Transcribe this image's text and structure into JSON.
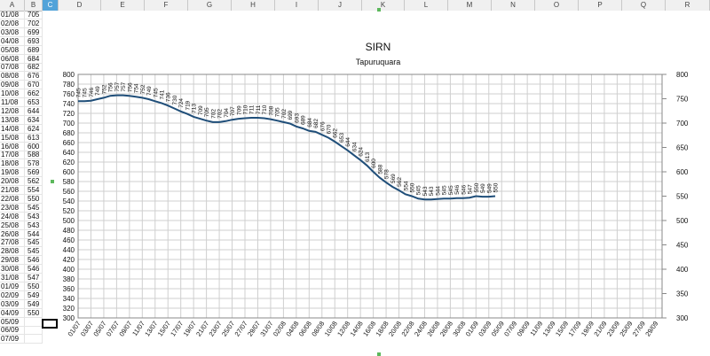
{
  "sheet": {
    "columns": [
      "A",
      "B",
      "C",
      "D",
      "E",
      "F",
      "G",
      "H",
      "I",
      "J",
      "K",
      "L",
      "M",
      "N",
      "O",
      "P",
      "Q",
      "R"
    ],
    "selected_column": "C",
    "rows": [
      {
        "a": "01/08",
        "b": "705"
      },
      {
        "a": "02/08",
        "b": "702"
      },
      {
        "a": "03/08",
        "b": "699"
      },
      {
        "a": "04/08",
        "b": "693"
      },
      {
        "a": "05/08",
        "b": "689"
      },
      {
        "a": "06/08",
        "b": "684"
      },
      {
        "a": "07/08",
        "b": "682"
      },
      {
        "a": "08/08",
        "b": "676"
      },
      {
        "a": "09/08",
        "b": "670"
      },
      {
        "a": "10/08",
        "b": "662"
      },
      {
        "a": "11/08",
        "b": "653"
      },
      {
        "a": "12/08",
        "b": "644"
      },
      {
        "a": "13/08",
        "b": "634"
      },
      {
        "a": "14/08",
        "b": "624"
      },
      {
        "a": "15/08",
        "b": "613"
      },
      {
        "a": "16/08",
        "b": "600"
      },
      {
        "a": "17/08",
        "b": "588"
      },
      {
        "a": "18/08",
        "b": "578"
      },
      {
        "a": "19/08",
        "b": "569"
      },
      {
        "a": "20/08",
        "b": "562"
      },
      {
        "a": "21/08",
        "b": "554"
      },
      {
        "a": "22/08",
        "b": "550"
      },
      {
        "a": "23/08",
        "b": "545"
      },
      {
        "a": "24/08",
        "b": "543"
      },
      {
        "a": "25/08",
        "b": "543"
      },
      {
        "a": "26/08",
        "b": "544"
      },
      {
        "a": "27/08",
        "b": "545"
      },
      {
        "a": "28/08",
        "b": "545"
      },
      {
        "a": "29/08",
        "b": "546"
      },
      {
        "a": "30/08",
        "b": "546"
      },
      {
        "a": "31/08",
        "b": "547"
      },
      {
        "a": "01/09",
        "b": "550"
      },
      {
        "a": "02/09",
        "b": "549"
      },
      {
        "a": "03/09",
        "b": "549"
      },
      {
        "a": "04/09",
        "b": "550"
      },
      {
        "a": "05/09",
        "b": ""
      },
      {
        "a": "06/09",
        "b": ""
      },
      {
        "a": "07/09",
        "b": ""
      }
    ]
  },
  "colors": {
    "line": "#1f4e79",
    "grid": "#cfcfcf",
    "axis": "#888888"
  },
  "chart_data": {
    "type": "line",
    "title": "SIRN",
    "subtitle": "Tapuruquara",
    "xlabel": "",
    "ylabel": "",
    "ylim": [
      300,
      800
    ],
    "yticks": [
      300,
      320,
      340,
      360,
      380,
      400,
      420,
      440,
      460,
      480,
      500,
      520,
      540,
      560,
      580,
      600,
      620,
      640,
      660,
      680,
      700,
      720,
      740,
      760,
      780,
      800
    ],
    "y2ticks": [
      300,
      350,
      400,
      450,
      500,
      550,
      600,
      650,
      700,
      750,
      800
    ],
    "grid": true,
    "legend": "none",
    "x_labels": [
      "01/07",
      "03/07",
      "05/07",
      "07/07",
      "09/07",
      "11/07",
      "13/07",
      "15/07",
      "17/07",
      "19/07",
      "21/07",
      "23/07",
      "25/07",
      "27/07",
      "29/07",
      "31/07",
      "02/08",
      "04/08",
      "06/08",
      "08/08",
      "10/08",
      "12/08",
      "14/08",
      "16/08",
      "18/08",
      "20/08",
      "22/08",
      "24/08",
      "26/08",
      "28/08",
      "30/08",
      "01/09",
      "03/09",
      "05/09",
      "07/09",
      "09/09",
      "11/09",
      "13/09",
      "15/09",
      "17/09",
      "19/09",
      "21/09",
      "23/09",
      "25/09",
      "27/09",
      "29/09"
    ],
    "series": [
      {
        "values": [
          745,
          745,
          746,
          749,
          752,
          756,
          757,
          757,
          756,
          754,
          752,
          749,
          745,
          741,
          736,
          730,
          724,
          719,
          713,
          709,
          705,
          702,
          702,
          704,
          707,
          709,
          710,
          711,
          711,
          710,
          708,
          705,
          702,
          699,
          693,
          689,
          684,
          682,
          676,
          670,
          662,
          653,
          644,
          634,
          624,
          613,
          600,
          588,
          578,
          569,
          562,
          554,
          550,
          545,
          543,
          543,
          544,
          545,
          545,
          546,
          546,
          547,
          550,
          549,
          549,
          550
        ]
      }
    ]
  }
}
